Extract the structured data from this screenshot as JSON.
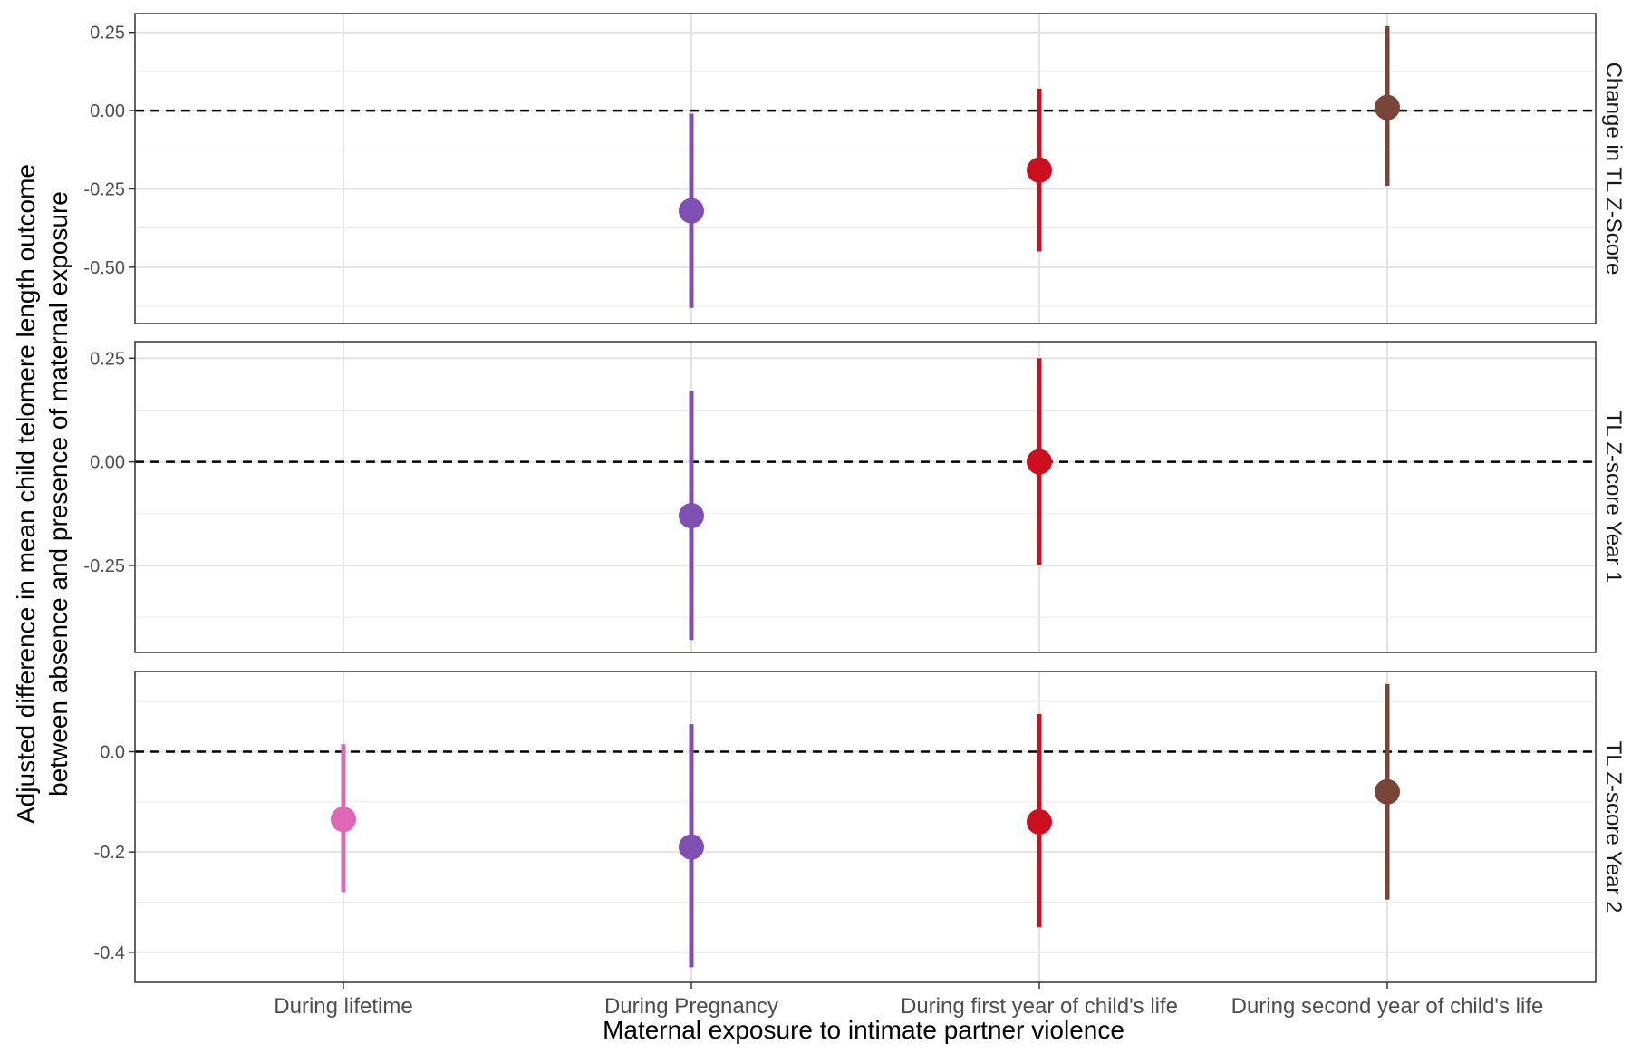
{
  "chart_data": {
    "type": "scatter",
    "subtype": "point-range-faceted",
    "xlabel": "Maternal exposure to intimate partner violence",
    "ylabel_line1": "Adjusted difference in mean child telomere length outcome",
    "ylabel_line2": "between absence and presence of maternal exposure",
    "categories": [
      "During lifetime",
      "During Pregnancy",
      "During first year of child's life",
      "During second year of child's life"
    ],
    "category_colors": [
      "#e066b8",
      "#7f4fb3",
      "#cc0f1f",
      "#7a4539"
    ],
    "reference_line": 0,
    "grid": true,
    "facets": [
      {
        "strip": "Change in TL Z-Score",
        "ylim": [
          -0.68,
          0.31
        ],
        "yticks": [
          0.25,
          0.0,
          -0.25,
          -0.5
        ],
        "yticklabels": [
          "0.25",
          "0.00",
          "-0.25",
          "-0.50"
        ],
        "points": [
          {
            "category": "During Pregnancy",
            "estimate": -0.32,
            "lower": -0.63,
            "upper": -0.01
          },
          {
            "category": "During first year of child's life",
            "estimate": -0.19,
            "lower": -0.45,
            "upper": 0.07
          },
          {
            "category": "During second year of child's life",
            "estimate": 0.01,
            "lower": -0.24,
            "upper": 0.27
          }
        ]
      },
      {
        "strip": "TL Z-score Year 1",
        "ylim": [
          -0.46,
          0.29
        ],
        "yticks": [
          0.25,
          0.0,
          -0.25
        ],
        "yticklabels": [
          "0.25",
          "0.00",
          "-0.25"
        ],
        "points": [
          {
            "category": "During Pregnancy",
            "estimate": -0.13,
            "lower": -0.43,
            "upper": 0.17
          },
          {
            "category": "During first year of child's life",
            "estimate": 0.0,
            "lower": -0.25,
            "upper": 0.25
          }
        ]
      },
      {
        "strip": "TL Z-score Year 2",
        "ylim": [
          -0.46,
          0.16
        ],
        "yticks": [
          0.0,
          -0.2,
          -0.4
        ],
        "yticklabels": [
          "0.0",
          "-0.2",
          "-0.4"
        ],
        "points": [
          {
            "category": "During lifetime",
            "estimate": -0.135,
            "lower": -0.28,
            "upper": 0.015
          },
          {
            "category": "During Pregnancy",
            "estimate": -0.19,
            "lower": -0.43,
            "upper": 0.055
          },
          {
            "category": "During first year of child's life",
            "estimate": -0.14,
            "lower": -0.35,
            "upper": 0.075
          },
          {
            "category": "During second year of child's life",
            "estimate": -0.08,
            "lower": -0.295,
            "upper": 0.135
          }
        ]
      }
    ]
  }
}
